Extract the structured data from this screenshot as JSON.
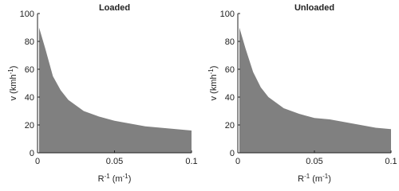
{
  "chart_data": [
    {
      "type": "area",
      "title": "Loaded",
      "xlabel": [
        "R",
        "-1",
        " (m",
        "-1",
        ")"
      ],
      "ylabel": [
        "v (kmh",
        "-1",
        ")"
      ],
      "x": [
        0.001,
        0.005,
        0.01,
        0.015,
        0.02,
        0.03,
        0.04,
        0.05,
        0.06,
        0.07,
        0.08,
        0.09,
        0.1
      ],
      "values": [
        90,
        75,
        55,
        45,
        38,
        30,
        26,
        23,
        21,
        19,
        18,
        17,
        16
      ],
      "color": "#808080",
      "xlim": [
        0,
        0.1
      ],
      "ylim": [
        0,
        100
      ],
      "xticks": [
        0,
        0.05,
        0.1
      ],
      "yticks": [
        0,
        20,
        40,
        60,
        80,
        100
      ]
    },
    {
      "type": "area",
      "title": "Unloaded",
      "xlabel": [
        "R",
        "-1",
        " (m",
        "-1",
        ")"
      ],
      "ylabel": [
        "v (kmh",
        "-1",
        ")"
      ],
      "x": [
        0.001,
        0.005,
        0.01,
        0.015,
        0.02,
        0.03,
        0.04,
        0.05,
        0.06,
        0.07,
        0.08,
        0.09,
        0.1
      ],
      "values": [
        90,
        75,
        58,
        47,
        40,
        32,
        28,
        25,
        24,
        22,
        20,
        18,
        17
      ],
      "color": "#808080",
      "xlim": [
        0,
        0.1
      ],
      "ylim": [
        0,
        100
      ],
      "xticks": [
        0,
        0.05,
        0.1
      ],
      "yticks": [
        0,
        20,
        40,
        60,
        80,
        100
      ]
    }
  ]
}
